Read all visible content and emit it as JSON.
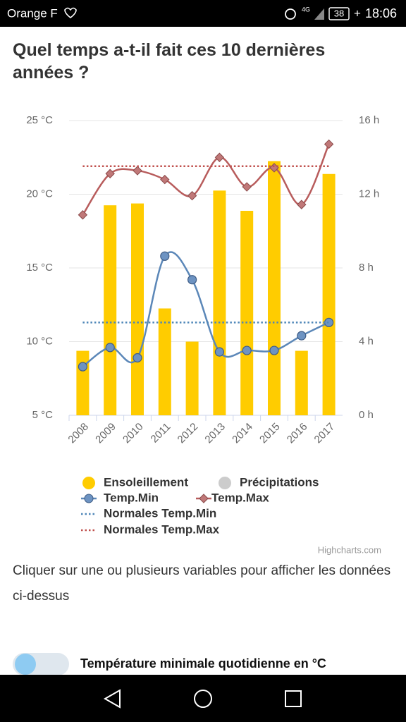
{
  "status_bar": {
    "carrier": "Orange F",
    "network": "4G",
    "battery": "38",
    "time": "18:06"
  },
  "page_title": "Quel temps a-t-il fait ces 10 dernières années ?",
  "chart_data": {
    "type": "combo",
    "categories": [
      "2008",
      "2009",
      "2010",
      "2011",
      "2012",
      "2013",
      "2014",
      "2015",
      "2016",
      "2017"
    ],
    "ylim": [
      5,
      25
    ],
    "yticks": [
      {
        "value": 5,
        "label": "5 °C"
      },
      {
        "value": 10,
        "label": "10 °C"
      },
      {
        "value": 15,
        "label": "15 °C"
      },
      {
        "value": 20,
        "label": "20 °C"
      },
      {
        "value": 25,
        "label": "25 °C"
      }
    ],
    "y2lim": [
      0,
      16
    ],
    "y2ticks": [
      {
        "value": 0,
        "label": "0 h"
      },
      {
        "value": 4,
        "label": "4 h"
      },
      {
        "value": 8,
        "label": "8 h"
      },
      {
        "value": 12,
        "label": "12 h"
      },
      {
        "value": 16,
        "label": "16 h"
      }
    ],
    "grid": true,
    "series": [
      {
        "name": "Ensoleillement",
        "kind": "bar",
        "axis": "y2",
        "color": "#ffcc00",
        "values": [
          3.5,
          11.4,
          11.5,
          5.8,
          4.0,
          12.2,
          11.1,
          13.8,
          3.5,
          13.1
        ]
      },
      {
        "name": "Précipitations",
        "kind": "bar",
        "color": "#cccccc",
        "visible": false
      },
      {
        "name": "Temp.Min",
        "kind": "spline",
        "marker": "circle",
        "color": "#5b87b8",
        "values": [
          8.3,
          9.6,
          8.9,
          15.8,
          14.2,
          9.3,
          9.4,
          9.4,
          10.4,
          11.3
        ]
      },
      {
        "name": "Temp.Max",
        "kind": "spline",
        "marker": "diamond",
        "color": "#b85c5c",
        "values": [
          18.6,
          21.4,
          21.6,
          21.0,
          19.9,
          22.5,
          20.5,
          21.8,
          19.3,
          23.4
        ]
      },
      {
        "name": "Normales Temp.Min",
        "kind": "dotted",
        "color": "#4e86b8",
        "values": [
          11.3,
          11.3,
          11.3,
          11.3,
          11.3,
          11.3,
          11.3,
          11.3,
          11.3,
          11.3
        ]
      },
      {
        "name": "Normales Temp.Max",
        "kind": "dotted",
        "color": "#c0504d",
        "values": [
          21.9,
          21.9,
          21.9,
          21.9,
          21.9,
          21.9,
          21.9,
          21.9,
          21.9,
          21.9
        ]
      }
    ],
    "credits": "Highcharts.com"
  },
  "instructions": "Cliquer sur une ou plusieurs variables pour afficher les données ci-dessus",
  "toggle_label": "Température minimale quotidienne en °C"
}
